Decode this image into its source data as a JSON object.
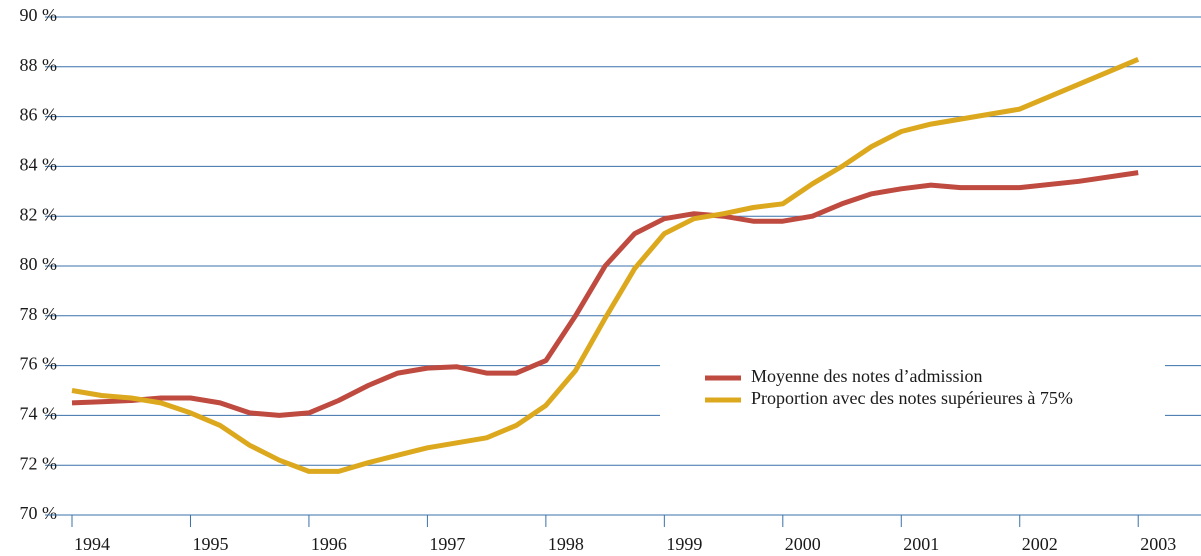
{
  "chart_data": {
    "type": "line",
    "x": [
      1994,
      1994.25,
      1994.5,
      1994.75,
      1995,
      1995.25,
      1995.5,
      1995.75,
      1996,
      1996.25,
      1996.5,
      1996.75,
      1997,
      1997.25,
      1997.5,
      1997.75,
      1998,
      1998.25,
      1998.5,
      1998.75,
      1999,
      1999.25,
      1999.5,
      1999.75,
      2000,
      2000.25,
      2000.5,
      2000.75,
      2001,
      2001.25,
      2001.5,
      2002,
      2002.5,
      2003
    ],
    "series": [
      {
        "name": "Moyenne des notes d’admission",
        "color": "#bf4a3f",
        "values": [
          74.5,
          74.55,
          74.6,
          74.7,
          74.7,
          74.5,
          74.1,
          74.0,
          74.1,
          74.6,
          75.2,
          75.7,
          75.9,
          75.95,
          75.7,
          75.7,
          76.2,
          78.0,
          80.0,
          81.3,
          81.9,
          82.1,
          82.0,
          81.8,
          81.8,
          82.0,
          82.5,
          82.9,
          83.1,
          83.25,
          83.15,
          83.15,
          83.4,
          83.75
        ]
      },
      {
        "name": "Proportion avec des notes supérieures à 75%",
        "color": "#dca81e",
        "values": [
          75.0,
          74.8,
          74.7,
          74.5,
          74.1,
          73.6,
          72.8,
          72.2,
          71.75,
          71.75,
          72.1,
          72.4,
          72.7,
          72.9,
          73.1,
          73.6,
          74.4,
          75.8,
          77.9,
          79.9,
          81.3,
          81.9,
          82.1,
          82.35,
          82.5,
          83.3,
          84.0,
          84.8,
          85.4,
          85.7,
          85.9,
          86.3,
          87.3,
          88.3
        ]
      }
    ],
    "xlim": [
      1994,
      2003.53
    ],
    "xticks": [
      1994,
      1995,
      1996,
      1997,
      1998,
      1999,
      2000,
      2001,
      2002,
      2003
    ],
    "ylim": [
      70,
      90
    ],
    "yticks": [
      {
        "value": 70,
        "label": "70 %"
      },
      {
        "value": 72,
        "label": "72 %"
      },
      {
        "value": 74,
        "label": "74 %"
      },
      {
        "value": 76,
        "label": "76 %"
      },
      {
        "value": 78,
        "label": "78 %"
      },
      {
        "value": 80,
        "label": "80 %"
      },
      {
        "value": 82,
        "label": "82 %"
      },
      {
        "value": 84,
        "label": "84 %"
      },
      {
        "value": 86,
        "label": "86 %"
      },
      {
        "value": 88,
        "label": "88 %"
      },
      {
        "value": 90,
        "label": "90 %"
      }
    ],
    "grid": true
  }
}
